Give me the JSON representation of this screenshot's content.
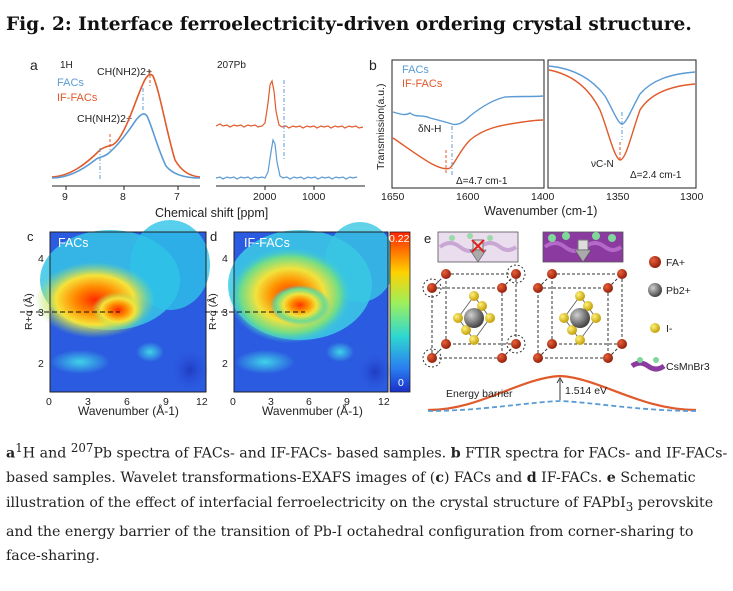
{
  "figure": {
    "title": "Fig. 2: Interface ferroelectricity-driven ordering crystal structure.",
    "colors": {
      "facs": "#5b9bd5",
      "if_facs": "#e05a2b",
      "panel_bg": "#ffffff"
    },
    "panel_a": {
      "label": "a",
      "nmr_h": {
        "label_nucleus": "1H",
        "legend": [
          "FACs",
          "IF-FACs"
        ],
        "peak_label_top": "CH(NH2)2+",
        "peak_label_mid": "CH(NH2)2+",
        "x_ticks": [
          "9",
          "8",
          "7"
        ]
      },
      "nmr_pb": {
        "label_nucleus": "207Pb",
        "x_ticks": [
          "2000",
          "1000"
        ]
      },
      "xlabel": "Chemical shift [ppm]"
    },
    "panel_b": {
      "label": "b",
      "legend": [
        "FACs",
        "IF-FACs"
      ],
      "ylabel": "Transmission(a.u.)",
      "left_annotation": "δN-H",
      "left_delta": "Δ=4.7 cm-1",
      "right_annotation": "νC-N",
      "right_delta": "Δ=2.4 cm-1",
      "x_ticks": [
        "1650",
        "1600",
        "1400",
        "1350",
        "1300"
      ],
      "xlabel": "Wavenumber (cm-1)"
    },
    "panel_c": {
      "label": "c",
      "title": "FACs",
      "ylabel": "R+α (Å)",
      "y_ticks": [
        "4",
        "3",
        "2"
      ],
      "x_ticks": [
        "0",
        "3",
        "6",
        "9",
        "12"
      ],
      "xlabel": "Wavenumber (Å-1)"
    },
    "panel_d": {
      "label": "d",
      "title": "IF-FACs",
      "ylabel": "R+α (Å)",
      "y_ticks": [
        "4",
        "3",
        "2"
      ],
      "x_ticks": [
        "0",
        "3",
        "6",
        "9",
        "12"
      ],
      "xlabel": "Wavenmuber (Å-1)",
      "colorbar_max": "0.22",
      "colorbar_min": "0"
    },
    "panel_e": {
      "label": "e",
      "legend": [
        "FA+",
        "Pb2+",
        "I-",
        "CsMnBr3"
      ],
      "barrier_label": "Energy barrier",
      "barrier_value": "1.514 eV"
    }
  },
  "caption": {
    "a_label": "a",
    "a_sup1": "1",
    "a_text1": "H and ",
    "a_sup2": "207",
    "a_text2": "Pb spectra of FACs- and IF-FACs- based samples. ",
    "b_label": "b",
    "b_text": " FTIR spectra for FACs- and IF-FACs-based samples. Wavelet transformations-EXAFS images of (",
    "c_label": "c",
    "c_text": ") FACs and ",
    "d_label": "d",
    "d_text": " IF-FACs. ",
    "e_label": "e",
    "e_text1": " Schematic illustration of the effect of interfacial ferroelectricity on the crystal structure of FAPbI",
    "e_sub": "3",
    "e_text2": " perovskite and the energy barrier of the transition of Pb-I octahedral configuration from corner-sharing to face-sharing."
  }
}
